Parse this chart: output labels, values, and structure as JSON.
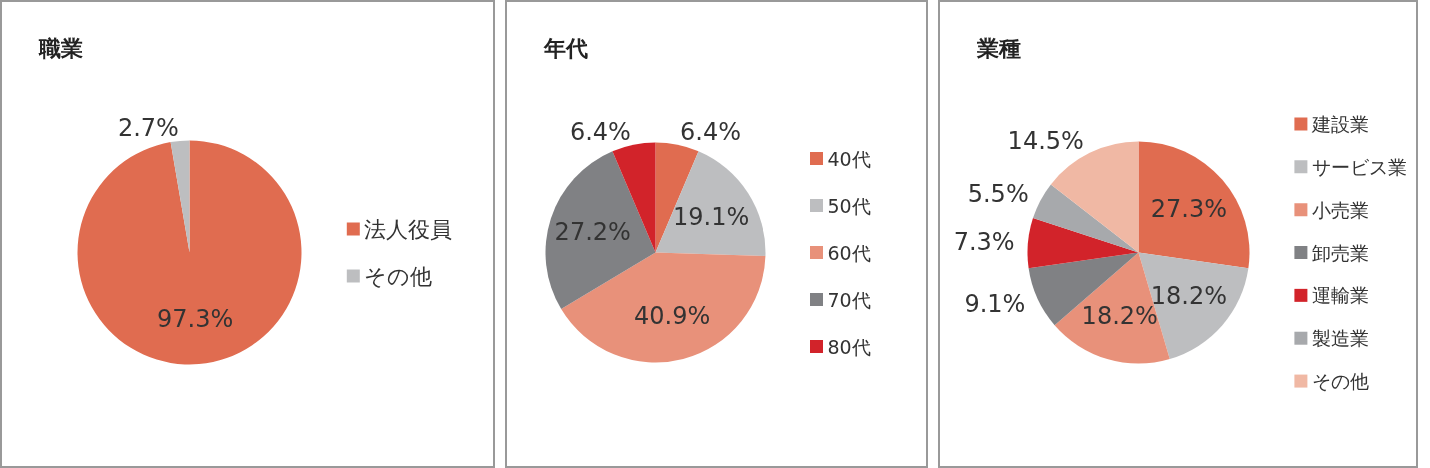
{
  "chart_data": [
    {
      "type": "pie",
      "title": "職業",
      "categories": [
        "法人役員",
        "その他"
      ],
      "values": [
        97.3,
        2.7
      ],
      "colors": [
        "#e06c50",
        "#bdbec0"
      ],
      "value_labels": [
        "97.3%",
        "2.7%"
      ],
      "legend": "right"
    },
    {
      "type": "pie",
      "title": "年代",
      "categories": [
        "40代",
        "50代",
        "60代",
        "70代",
        "80代"
      ],
      "values": [
        6.4,
        19.1,
        40.9,
        27.2,
        6.4
      ],
      "colors": [
        "#e06c50",
        "#bdbec0",
        "#e8917a",
        "#808184",
        "#d2232a"
      ],
      "value_labels": [
        "6.4%",
        "19.1%",
        "40.9%",
        "27.2%",
        "6.4%"
      ],
      "legend": "right"
    },
    {
      "type": "pie",
      "title": "業種",
      "categories": [
        "建設業",
        "サービス業",
        "小売業",
        "卸売業",
        "運輸業",
        "製造業",
        "その他"
      ],
      "values": [
        27.3,
        18.2,
        18.2,
        9.1,
        7.3,
        5.5,
        14.5
      ],
      "colors": [
        "#e06c50",
        "#bdbec0",
        "#e8917a",
        "#808184",
        "#d2232a",
        "#a7a9ac",
        "#f0b8a4"
      ],
      "value_labels": [
        "27.3%",
        "18.2%",
        "18.2%",
        "9.1%",
        "7.3%",
        "5.5%",
        "14.5%"
      ],
      "legend": "right"
    }
  ]
}
